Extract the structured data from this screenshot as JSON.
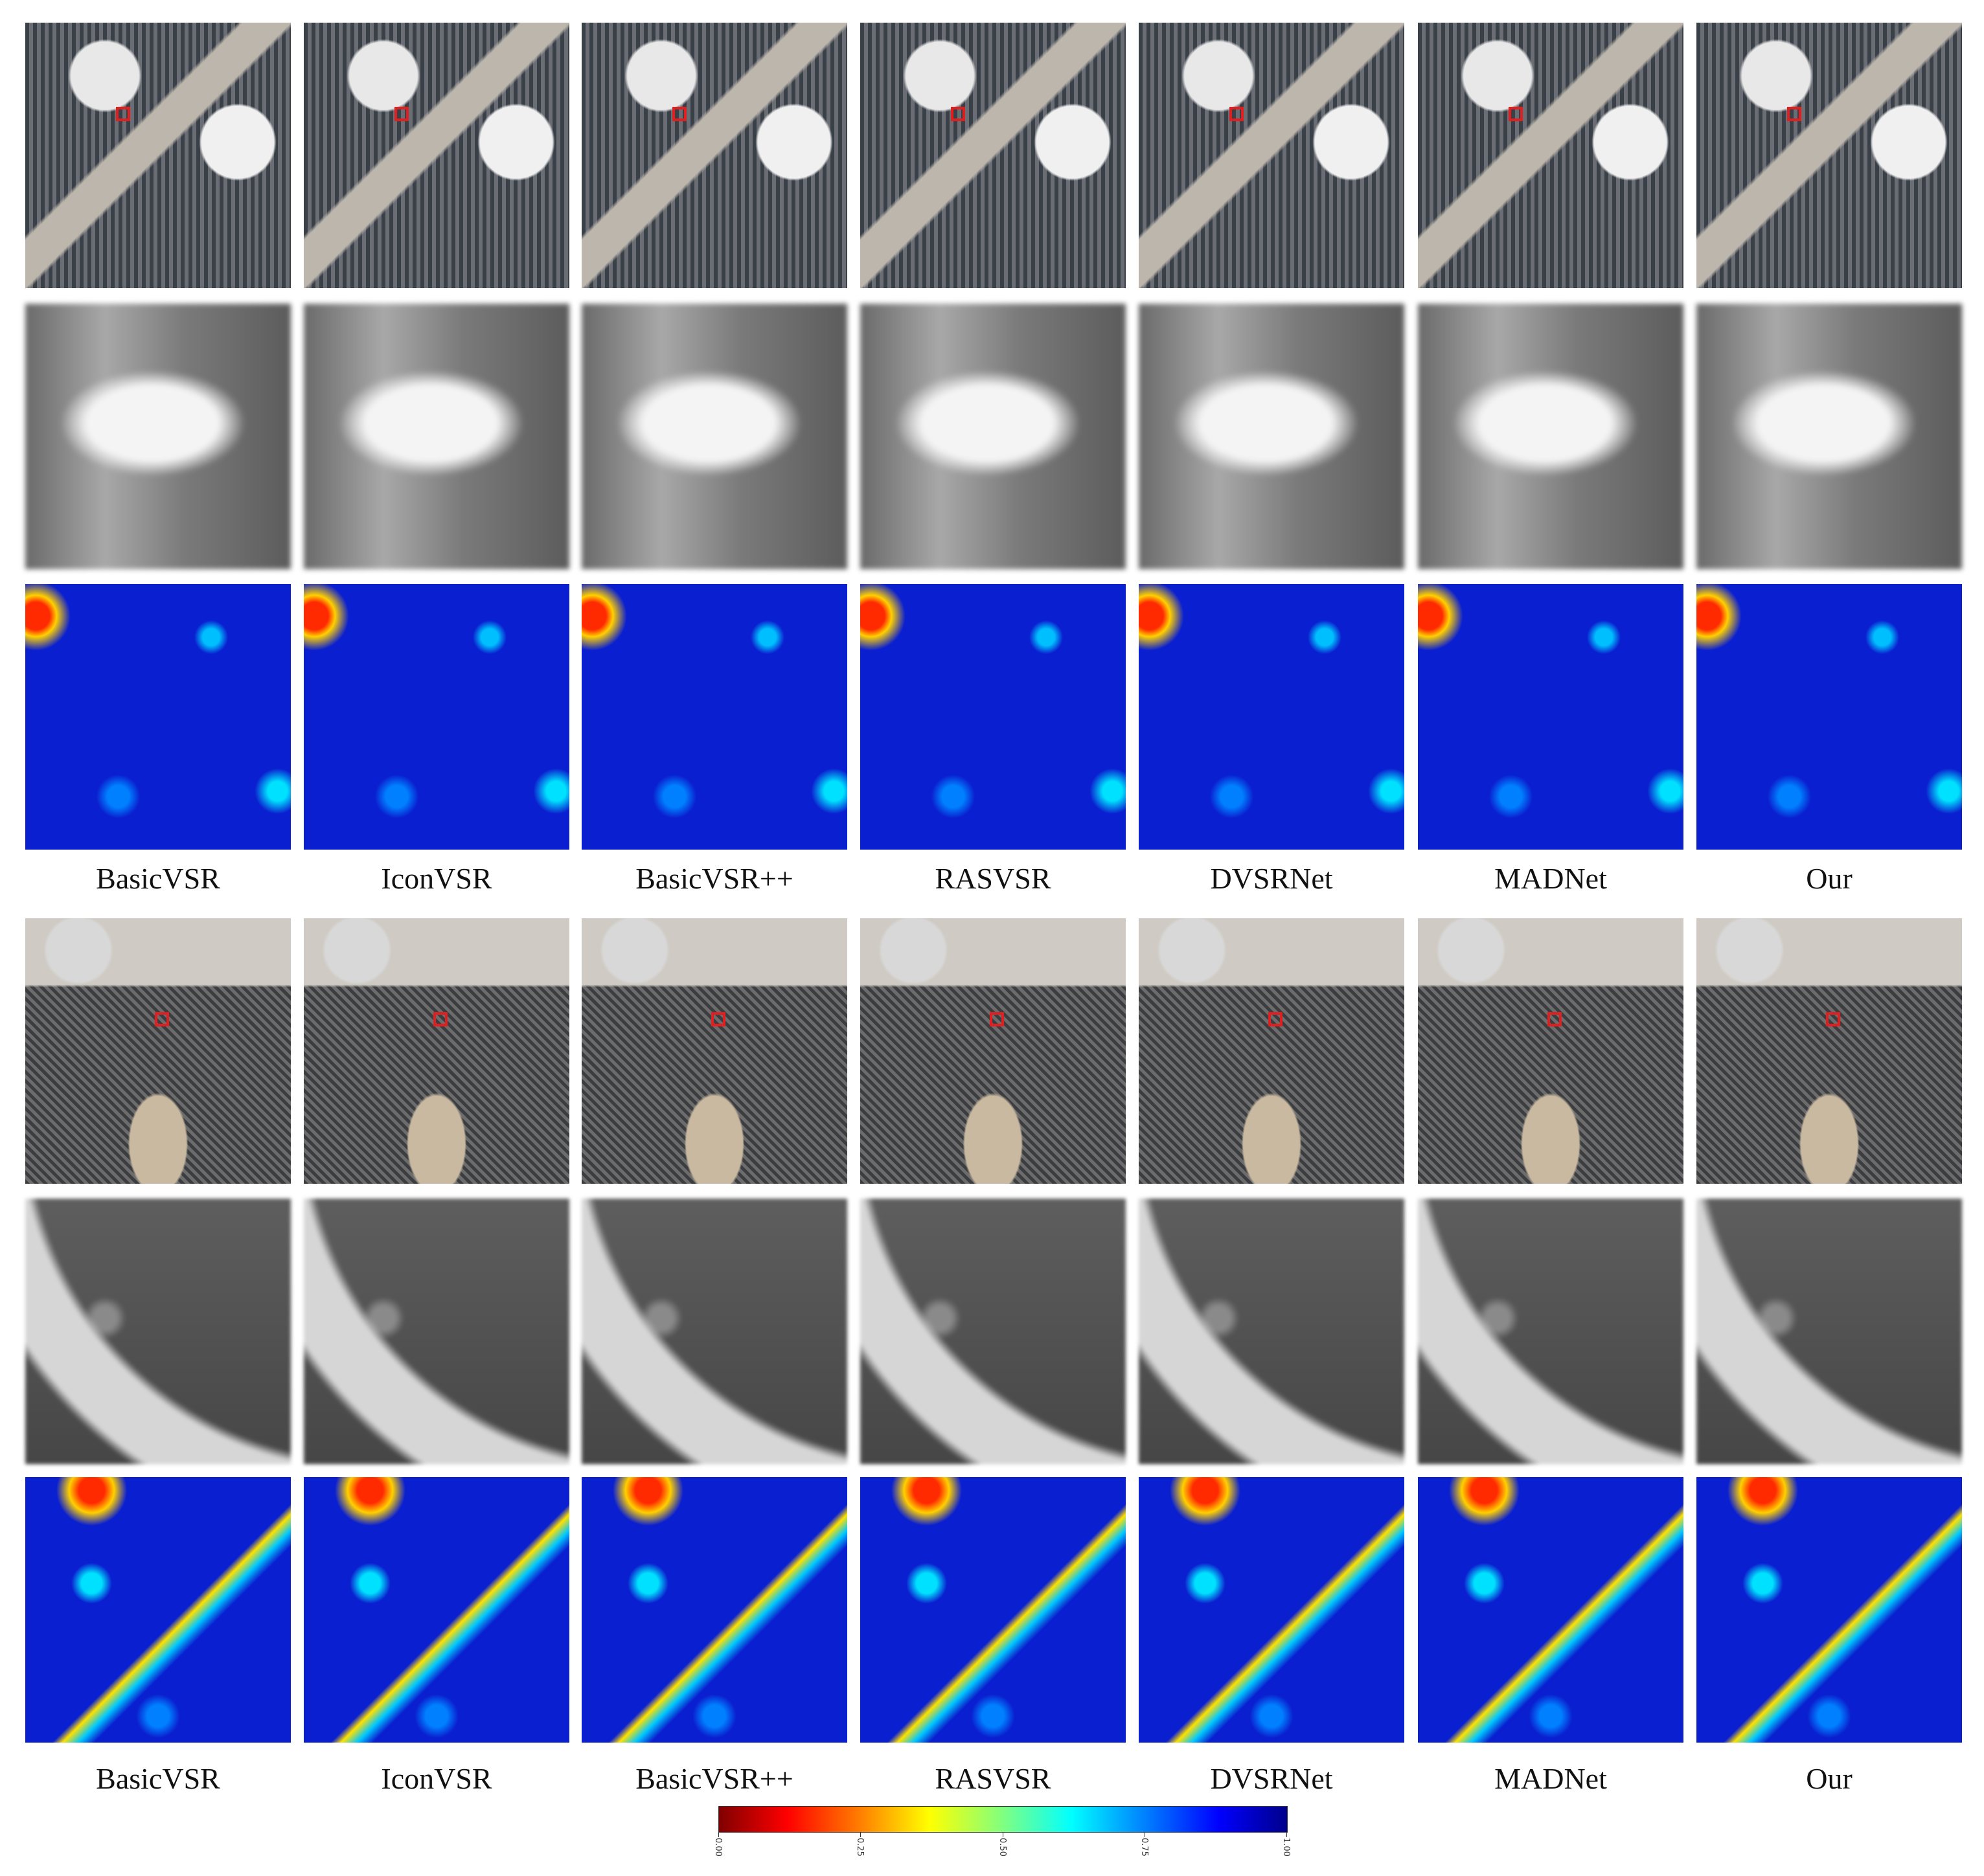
{
  "groups": [
    {
      "labels": [
        "BasicVSR",
        "IconVSR",
        "BasicVSR++",
        "RASVSR",
        "DVSRNet",
        "MADNet",
        "Our"
      ]
    },
    {
      "labels": [
        "BasicVSR",
        "IconVSR",
        "BasicVSR++",
        "RASVSR",
        "DVSRNet",
        "MADNet",
        "Our"
      ]
    }
  ],
  "colorbar": {
    "ticks": [
      {
        "value": 0,
        "label": "0.00"
      },
      {
        "value": 0.25,
        "label": "0.25"
      },
      {
        "value": 0.5,
        "label": "0.50"
      },
      {
        "value": 0.75,
        "label": "0.75"
      },
      {
        "value": 1,
        "label": "1.00"
      }
    ]
  }
}
